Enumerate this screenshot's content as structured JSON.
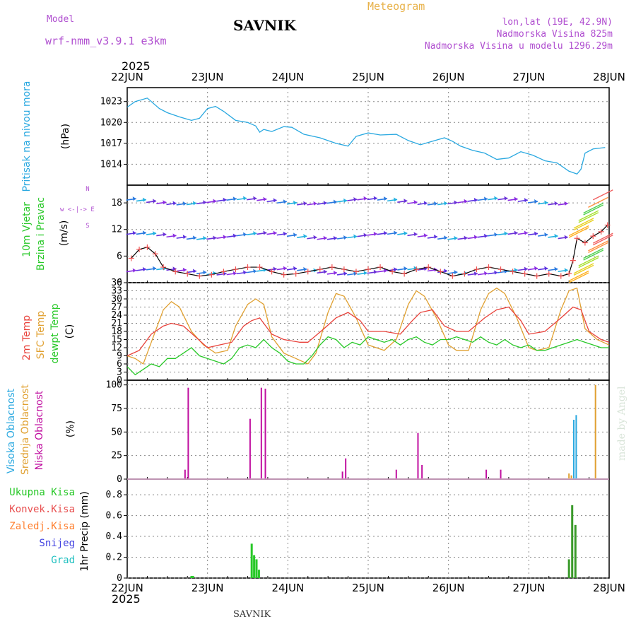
{
  "header": {
    "model_label": "Model",
    "model_name": "wrf-nmm_v3.9.1 e3km",
    "station": "SAVNIK",
    "meteogram": "Meteogram",
    "lonlat": "lon,lat (19E, 42.9N)",
    "altitude": "Nadmorska Visina 825m",
    "model_altitude": "Nadmorska Visina u modelu 1296.29m",
    "year_top": "2025",
    "year_bottom": "2025",
    "footer_station": "SAVNIK",
    "signature": "made by Angel"
  },
  "colors": {
    "pressure": "#29a8e0",
    "temp2m": "#e8413a",
    "sfc": "#e0a030",
    "dew": "#28c828",
    "precip_total": "#28c828",
    "precip_conv": "#e85050",
    "precip_frz": "#ff8030",
    "snow": "#4040e0",
    "hail": "#20c0c0",
    "high_cloud": "#29a8e0",
    "mid_cloud": "#e0a030",
    "low_cloud": "#c010a0",
    "wind_speed": "#000000"
  },
  "chart_data": [
    {
      "type": "line",
      "panel": "pressure",
      "ylabel": [
        "Pritisak na nivou mora",
        "(hPa)"
      ],
      "yticks": [
        1014,
        1017,
        1020,
        1023
      ],
      "ylim": [
        1011,
        1025
      ],
      "x_days": [
        "22JUN",
        "23JUN",
        "24JUN",
        "25JUN",
        "26JUN",
        "27JUN",
        "28JUN"
      ],
      "series": [
        {
          "name": "Pritisak",
          "x": [
            0,
            0.1,
            0.25,
            0.4,
            0.5,
            0.65,
            0.8,
            0.9,
            1.0,
            1.1,
            1.2,
            1.35,
            1.5,
            1.6,
            1.65,
            1.7,
            1.8,
            1.95,
            2.05,
            2.2,
            2.4,
            2.6,
            2.75,
            2.85,
            3.0,
            3.15,
            3.35,
            3.5,
            3.65,
            3.8,
            3.95,
            4.05,
            4.15,
            4.3,
            4.45,
            4.6,
            4.75,
            4.9,
            5.05,
            5.2,
            5.35,
            5.5,
            5.6,
            5.65,
            5.7,
            5.8,
            5.95
          ],
          "y": [
            1022.2,
            1023.0,
            1023.5,
            1022.0,
            1021.4,
            1020.8,
            1020.3,
            1020.6,
            1022.0,
            1022.3,
            1021.6,
            1020.3,
            1020.0,
            1019.5,
            1018.6,
            1019.0,
            1018.7,
            1019.4,
            1019.3,
            1018.3,
            1017.8,
            1017.0,
            1016.6,
            1018.0,
            1018.5,
            1018.2,
            1018.3,
            1017.4,
            1016.8,
            1017.3,
            1017.8,
            1017.3,
            1016.6,
            1016.0,
            1015.6,
            1014.7,
            1014.9,
            1015.8,
            1015.3,
            1014.5,
            1014.2,
            1013.0,
            1012.6,
            1013.3,
            1015.6,
            1016.2,
            1016.4
          ]
        }
      ]
    },
    {
      "type": "line",
      "panel": "wind",
      "ylabel": [
        "10m Vjetar",
        "Brzina i Pravac",
        "(m/s)"
      ],
      "yticks": [
        0,
        6,
        12,
        18
      ],
      "ylim": [
        0,
        22
      ],
      "compass": "w <-|-> E",
      "compass_n": "N",
      "compass_s": "S",
      "series": [
        {
          "name": "Brzina vjetra",
          "x": [
            0.05,
            0.15,
            0.25,
            0.35,
            0.45,
            0.6,
            0.75,
            0.9,
            1.05,
            1.2,
            1.35,
            1.5,
            1.65,
            1.8,
            1.95,
            2.1,
            2.25,
            2.4,
            2.55,
            2.7,
            2.85,
            3.0,
            3.15,
            3.3,
            3.45,
            3.6,
            3.75,
            3.9,
            4.05,
            4.2,
            4.35,
            4.5,
            4.65,
            4.8,
            4.95,
            5.1,
            5.25,
            5.4,
            5.5,
            5.55,
            5.6,
            5.7,
            5.8,
            5.9,
            5.98
          ],
          "y": [
            5.5,
            7.5,
            8.0,
            6.5,
            3.5,
            2.5,
            2.0,
            1.5,
            1.8,
            2.5,
            3.0,
            3.5,
            3.5,
            2.5,
            1.8,
            2.0,
            2.5,
            3.0,
            3.5,
            3.0,
            2.5,
            3.0,
            3.5,
            2.5,
            2.0,
            3.0,
            3.5,
            2.5,
            1.5,
            2.0,
            3.0,
            3.5,
            3.0,
            2.5,
            2.0,
            1.5,
            2.0,
            1.5,
            2.0,
            5.0,
            10.0,
            9.0,
            10.5,
            11.5,
            13.0
          ]
        }
      ],
      "arrow_levels": [
        2.5,
        10.5,
        18.3
      ]
    },
    {
      "type": "line",
      "panel": "temperature",
      "ylabel": [
        "2m Temp",
        "SFC Temp",
        "dewpt Temp",
        "(C)"
      ],
      "yticks": [
        0,
        3,
        6,
        9,
        12,
        15,
        18,
        21,
        24,
        27,
        30,
        33,
        36
      ],
      "ylim": [
        0,
        36
      ],
      "series": [
        {
          "name": "2m Temp",
          "x": [
            0,
            0.15,
            0.3,
            0.45,
            0.55,
            0.7,
            0.85,
            1.0,
            1.15,
            1.3,
            1.45,
            1.55,
            1.65,
            1.8,
            1.95,
            2.15,
            2.25,
            2.45,
            2.6,
            2.75,
            2.9,
            3.0,
            3.2,
            3.4,
            3.55,
            3.65,
            3.8,
            3.95,
            4.1,
            4.25,
            4.45,
            4.6,
            4.75,
            4.9,
            5.0,
            5.2,
            5.4,
            5.55,
            5.65,
            5.75,
            5.9,
            6.0
          ],
          "y": [
            9,
            11,
            17,
            20,
            21,
            20,
            16,
            12,
            13,
            14,
            20,
            22,
            23,
            17,
            15,
            14,
            14,
            19,
            23,
            25,
            22,
            18,
            18,
            17,
            22,
            25,
            26,
            20,
            18,
            18,
            23,
            26,
            27,
            22,
            17,
            18,
            23,
            27,
            26,
            18,
            15,
            14
          ]
        },
        {
          "name": "SFC Temp",
          "x": [
            0,
            0.1,
            0.2,
            0.3,
            0.45,
            0.55,
            0.65,
            0.8,
            0.95,
            1.1,
            1.25,
            1.35,
            1.5,
            1.6,
            1.7,
            1.8,
            1.95,
            2.1,
            2.25,
            2.35,
            2.5,
            2.6,
            2.7,
            2.85,
            3.0,
            3.1,
            3.2,
            3.35,
            3.5,
            3.6,
            3.7,
            3.85,
            4.0,
            4.1,
            4.25,
            4.4,
            4.5,
            4.6,
            4.7,
            4.85,
            5.0,
            5.1,
            5.25,
            5.4,
            5.5,
            5.6,
            5.7,
            5.85,
            6.0
          ],
          "y": [
            9,
            8,
            6,
            14,
            26,
            29,
            27,
            18,
            13,
            10,
            11,
            20,
            28,
            30,
            28,
            16,
            10,
            8,
            6,
            10,
            25,
            32,
            31,
            23,
            13,
            12,
            11,
            15,
            28,
            33,
            31,
            23,
            13,
            11,
            11,
            26,
            32,
            34,
            32,
            23,
            12,
            11,
            12,
            26,
            33,
            34,
            19,
            15,
            13
          ]
        },
        {
          "name": "dewpt Temp",
          "x": [
            0,
            0.1,
            0.2,
            0.3,
            0.4,
            0.5,
            0.6,
            0.7,
            0.8,
            0.9,
            1.0,
            1.1,
            1.2,
            1.3,
            1.4,
            1.5,
            1.6,
            1.7,
            1.8,
            1.9,
            2.0,
            2.1,
            2.2,
            2.3,
            2.4,
            2.5,
            2.6,
            2.7,
            2.8,
            2.9,
            3.0,
            3.1,
            3.2,
            3.3,
            3.4,
            3.5,
            3.6,
            3.7,
            3.8,
            3.9,
            4.0,
            4.1,
            4.2,
            4.3,
            4.4,
            4.5,
            4.6,
            4.7,
            4.8,
            4.9,
            5.0,
            5.1,
            5.2,
            5.3,
            5.4,
            5.5,
            5.6,
            5.7,
            5.8,
            5.9,
            6.0
          ],
          "y": [
            5,
            2,
            4,
            6,
            5,
            8,
            8,
            10,
            12,
            9,
            8,
            7,
            6,
            8,
            12,
            13,
            12,
            15,
            12,
            10,
            7,
            6,
            6,
            9,
            13,
            16,
            15,
            12,
            14,
            13,
            16,
            15,
            14,
            15,
            13,
            15,
            16,
            14,
            13,
            15,
            15,
            16,
            15,
            14,
            16,
            14,
            13,
            15,
            13,
            12,
            13,
            11,
            11,
            12,
            13,
            14,
            15,
            14,
            13,
            12,
            12
          ]
        }
      ]
    },
    {
      "type": "bar",
      "panel": "cloud",
      "ylabel": [
        "Visoka Oblacnost",
        "Srednja Oblacnost",
        "Niska Oblacnost",
        "(%)"
      ],
      "yticks": [
        0,
        25,
        50,
        75,
        100
      ],
      "ylim": [
        0,
        105
      ],
      "series": [
        {
          "name": "Niska Oblacnost",
          "x": [
            0.72,
            0.76,
            1.53,
            1.67,
            1.72,
            2.68,
            2.72,
            3.35,
            3.62,
            3.67,
            4.47,
            4.65
          ],
          "values": [
            10,
            97,
            64,
            97,
            96,
            8,
            22,
            10,
            49,
            15,
            10,
            10
          ]
        },
        {
          "name": "Srednja Oblacnost",
          "x": [
            5.5,
            5.53,
            5.83
          ],
          "values": [
            6,
            4,
            100
          ]
        },
        {
          "name": "Visoka Oblacnost",
          "x": [
            5.56,
            5.59
          ],
          "values": [
            63,
            68
          ]
        }
      ]
    },
    {
      "type": "bar",
      "panel": "precip",
      "ylabel": [
        "1hr Precip (mm)"
      ],
      "legend": [
        "Ukupna Kisa",
        "Konvek.Kisa",
        "Zaledj.Kisa",
        "Snijeg",
        "Grad"
      ],
      "yticks": [
        0,
        0.2,
        0.4,
        0.6,
        0.8
      ],
      "ylim": [
        0,
        0.95
      ],
      "series": [
        {
          "name": "Ukupna Kisa",
          "x": [
            0.8,
            0.82,
            1.55,
            1.58,
            1.61,
            1.64,
            1.51,
            5.5,
            5.54,
            5.58
          ],
          "values": [
            0.02,
            0.02,
            0.33,
            0.22,
            0.18,
            0.08,
            0.0,
            0.18,
            0.7,
            0.51
          ]
        }
      ]
    }
  ]
}
